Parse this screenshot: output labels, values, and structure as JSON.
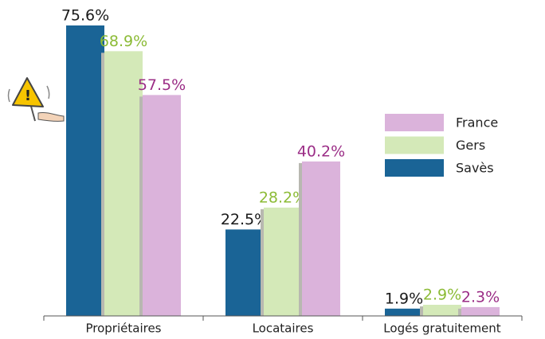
{
  "chart_data": {
    "type": "bar",
    "categories": [
      "Propriétaires",
      "Locataires",
      "Logés gratuitement"
    ],
    "series": [
      {
        "name": "Savès",
        "color": "#1a6496",
        "label_color": "#1a1a1a",
        "values": [
          75.6,
          22.5,
          1.9
        ],
        "value_labels": [
          "75.6%",
          "22.5%",
          "1.9%"
        ]
      },
      {
        "name": "Gers",
        "color": "#d4e9b8",
        "label_color": "#8cbb36",
        "values": [
          68.9,
          28.2,
          2.9
        ],
        "value_labels": [
          "68.9%",
          "28.2%",
          "2.9%"
        ]
      },
      {
        "name": "France",
        "color": "#dbb3db",
        "label_color": "#9b2d86",
        "values": [
          57.5,
          40.2,
          2.3
        ],
        "value_labels": [
          "57.5%",
          "40.2%",
          "2.3%"
        ]
      }
    ],
    "legend": "right"
  }
}
